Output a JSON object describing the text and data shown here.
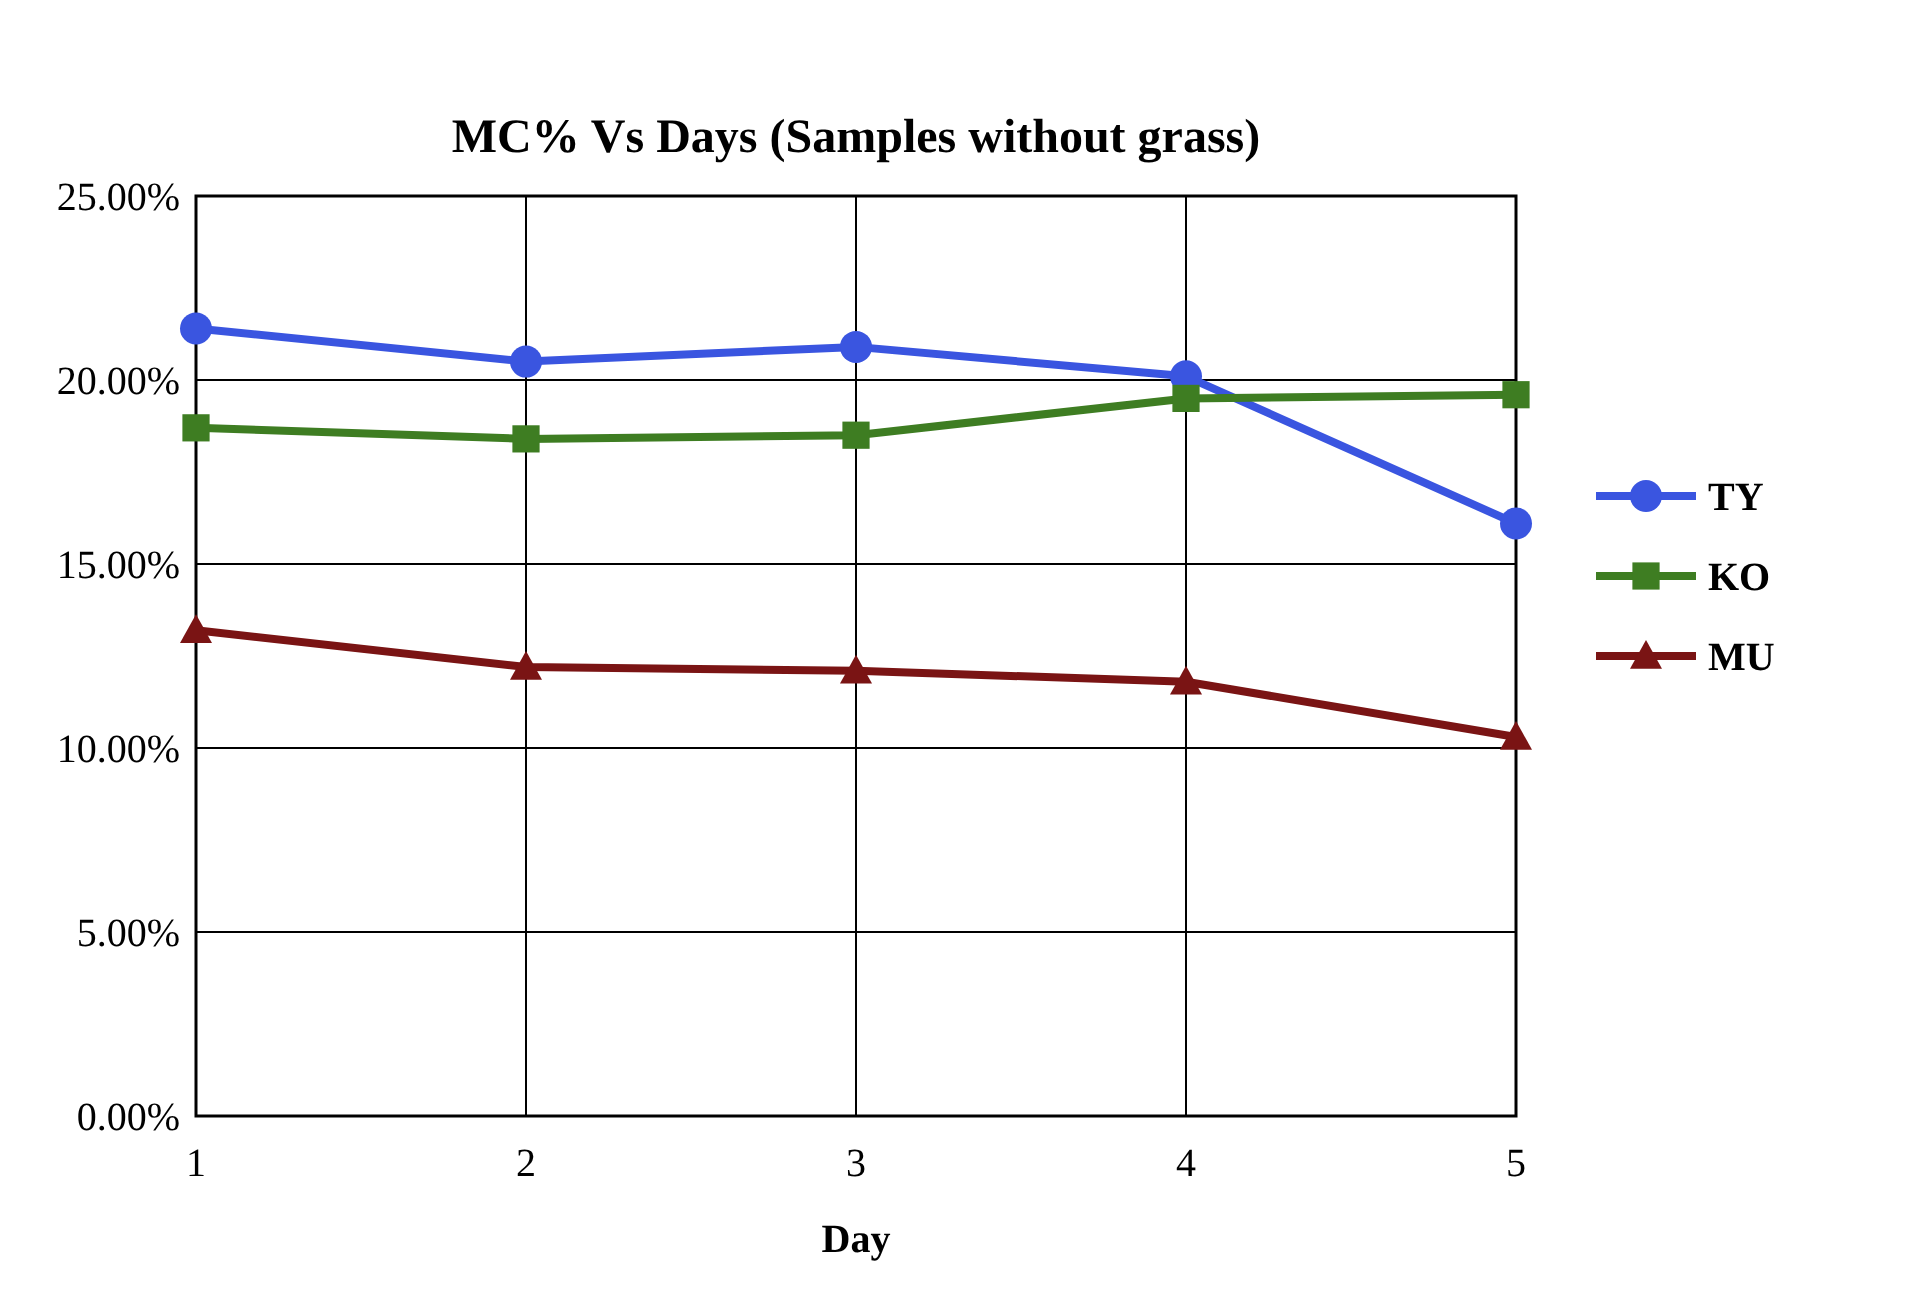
{
  "chart_data": {
    "type": "line",
    "title": "MC% Vs Days (Samples without grass)",
    "xlabel": "Day",
    "x": [
      1,
      2,
      3,
      4,
      5
    ],
    "xlim": [
      1,
      5
    ],
    "xticks": [
      1,
      2,
      3,
      4,
      5
    ],
    "ylim": [
      0,
      25
    ],
    "yticks": [
      {
        "value": 0,
        "label": "0.00%"
      },
      {
        "value": 5,
        "label": "5.00%"
      },
      {
        "value": 10,
        "label": "10.00%"
      },
      {
        "value": 15,
        "label": "15.00%"
      },
      {
        "value": 20,
        "label": "20.00%"
      },
      {
        "value": 25,
        "label": "25.00%"
      }
    ],
    "grid": true,
    "legend": "right",
    "series": [
      {
        "name": "TY",
        "color": "#3a55e0",
        "marker": "circle",
        "values": [
          21.4,
          20.5,
          20.9,
          20.1,
          16.1
        ]
      },
      {
        "name": "KO",
        "color": "#3e7d22",
        "marker": "square",
        "values": [
          18.7,
          18.4,
          18.5,
          19.5,
          19.6
        ]
      },
      {
        "name": "MU",
        "color": "#7a1414",
        "marker": "triangle",
        "values": [
          13.2,
          12.2,
          12.1,
          11.8,
          10.3
        ]
      }
    ]
  }
}
